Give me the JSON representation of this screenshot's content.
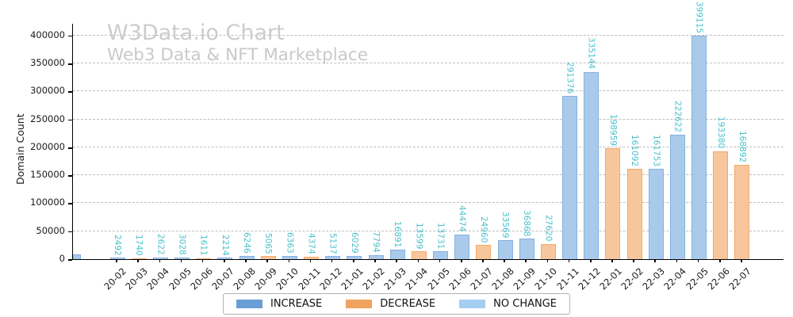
{
  "header": {
    "title": "W3Data.io Chart",
    "subtitle": "Web3 Data & NFT Marketplace"
  },
  "colors": {
    "title_text": "#cccccc",
    "subtitle_text": "#c9c9c9",
    "value_label": "#49c1cd",
    "grid": "#bdbdbd",
    "axis": "#000000",
    "bar_increase_fill": "#aacaec",
    "bar_increase_edge": "#84b1e0",
    "bar_decrease_fill": "#f8c69c",
    "bar_decrease_edge": "#f2a968",
    "legend_increase": "#6a9ed6",
    "legend_decrease": "#f0a35e",
    "legend_no_change": "#a6cef2"
  },
  "legend": [
    {
      "id": "increase",
      "label": "INCREASE",
      "color": "#6a9ed6"
    },
    {
      "id": "decrease",
      "label": "DECREASE",
      "color": "#f0a35e"
    },
    {
      "id": "no_change",
      "label": "NO CHANGE",
      "color": "#a6cef2"
    }
  ],
  "chart_data": {
    "type": "bar",
    "title": "W3Data.io Chart",
    "subtitle": "Web3 Data & NFT Marketplace",
    "xlabel": "",
    "ylabel": "Domain Count",
    "ylim": [
      0,
      421000
    ],
    "y_ticks": [
      0,
      50000,
      100000,
      150000,
      200000,
      250000,
      300000,
      350000,
      400000
    ],
    "grid": "horizontal-dashed",
    "legend_position": "bottom-center",
    "x_tick_rotation": 45,
    "value_label_rotation": 90,
    "partial_left_bar": {
      "present": true,
      "series": "increase"
    },
    "points": [
      {
        "month": "20-02",
        "value": 2492,
        "series": "increase"
      },
      {
        "month": "20-03",
        "value": 1740,
        "series": "decrease"
      },
      {
        "month": "20-04",
        "value": 2622,
        "series": "increase"
      },
      {
        "month": "20-05",
        "value": 3028,
        "series": "increase"
      },
      {
        "month": "20-06",
        "value": 1611,
        "series": "decrease"
      },
      {
        "month": "20-07",
        "value": 2214,
        "series": "increase"
      },
      {
        "month": "20-08",
        "value": 6246,
        "series": "increase"
      },
      {
        "month": "20-09",
        "value": 5065,
        "series": "decrease"
      },
      {
        "month": "20-10",
        "value": 6363,
        "series": "increase"
      },
      {
        "month": "20-11",
        "value": 4374,
        "series": "decrease"
      },
      {
        "month": "20-12",
        "value": 5137,
        "series": "increase"
      },
      {
        "month": "21-01",
        "value": 6029,
        "series": "increase"
      },
      {
        "month": "21-02",
        "value": 7794,
        "series": "increase"
      },
      {
        "month": "21-03",
        "value": 16891,
        "series": "increase"
      },
      {
        "month": "21-04",
        "value": 13599,
        "series": "decrease"
      },
      {
        "month": "21-05",
        "value": 13731,
        "series": "increase"
      },
      {
        "month": "21-06",
        "value": 44474,
        "series": "increase"
      },
      {
        "month": "21-07",
        "value": 24960,
        "series": "decrease"
      },
      {
        "month": "21-08",
        "value": 33569,
        "series": "increase"
      },
      {
        "month": "21-09",
        "value": 36868,
        "series": "increase"
      },
      {
        "month": "21-10",
        "value": 27620,
        "series": "decrease"
      },
      {
        "month": "21-11",
        "value": 291376,
        "series": "increase"
      },
      {
        "month": "21-12",
        "value": 335144,
        "series": "increase"
      },
      {
        "month": "22-01",
        "value": 198959,
        "series": "decrease"
      },
      {
        "month": "22-02",
        "value": 161092,
        "series": "decrease"
      },
      {
        "month": "22-03",
        "value": 161753,
        "series": "increase"
      },
      {
        "month": "22-04",
        "value": 222622,
        "series": "increase"
      },
      {
        "month": "22-05",
        "value": 399115,
        "series": "increase"
      },
      {
        "month": "22-06",
        "value": 193380,
        "series": "decrease"
      },
      {
        "month": "22-07",
        "value": 168892,
        "series": "decrease"
      }
    ]
  }
}
